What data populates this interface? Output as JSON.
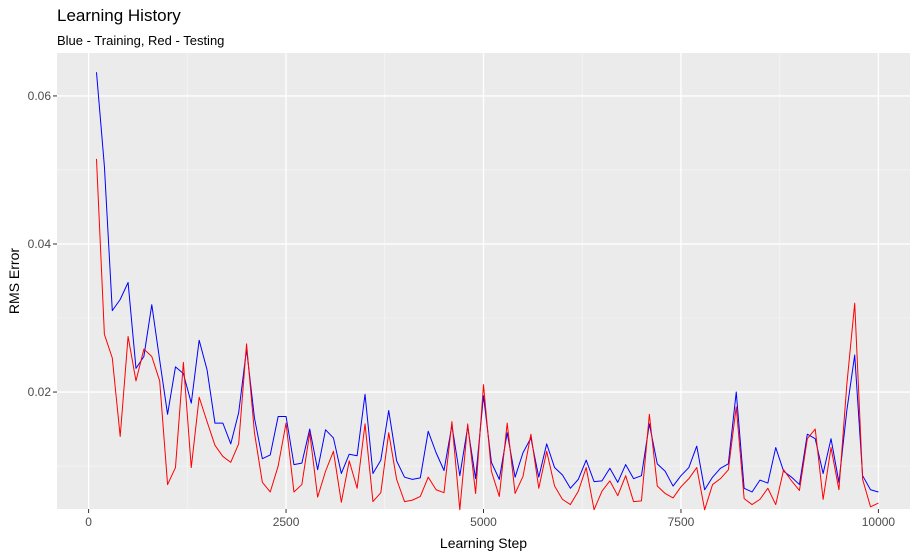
{
  "chart_data": {
    "type": "line",
    "title": "Learning History",
    "subtitle": "Blue - Training, Red - Testing",
    "xlabel": "Learning Step",
    "ylabel": "RMS Error",
    "xlim": [
      -400,
      10400
    ],
    "ylim": [
      0.0042,
      0.0658
    ],
    "x_ticks": [
      0,
      2500,
      5000,
      7500,
      10000
    ],
    "x_tick_labels": [
      "0",
      "2500",
      "5000",
      "7500",
      "10000"
    ],
    "y_ticks": [
      0.02,
      0.04,
      0.06
    ],
    "y_tick_labels": [
      "0.02",
      "0.04",
      "0.06"
    ],
    "grid": true,
    "legend": "none",
    "x": [
      100,
      200,
      300,
      400,
      500,
      600,
      700,
      800,
      900,
      1000,
      1100,
      1200,
      1300,
      1400,
      1500,
      1600,
      1700,
      1800,
      1900,
      2000,
      2100,
      2200,
      2300,
      2400,
      2500,
      2600,
      2700,
      2800,
      2900,
      3000,
      3100,
      3200,
      3300,
      3400,
      3500,
      3600,
      3700,
      3800,
      3900,
      4000,
      4100,
      4200,
      4300,
      4400,
      4500,
      4600,
      4700,
      4800,
      4900,
      5000,
      5100,
      5200,
      5300,
      5400,
      5500,
      5600,
      5700,
      5800,
      5900,
      6000,
      6100,
      6200,
      6300,
      6400,
      6500,
      6600,
      6700,
      6800,
      6900,
      7000,
      7100,
      7200,
      7300,
      7400,
      7500,
      7600,
      7700,
      7800,
      7900,
      8000,
      8100,
      8200,
      8300,
      8400,
      8500,
      8600,
      8700,
      8800,
      8900,
      9000,
      9100,
      9200,
      9300,
      9400,
      9500,
      9600,
      9700,
      9800,
      9900,
      10000
    ],
    "series": [
      {
        "color": "#0000ff",
        "values": [
          0.0632,
          0.0505,
          0.031,
          0.0325,
          0.0348,
          0.0232,
          0.0248,
          0.0318,
          0.0243,
          0.017,
          0.0234,
          0.0225,
          0.0185,
          0.027,
          0.023,
          0.0158,
          0.0158,
          0.013,
          0.0172,
          0.0258,
          0.0165,
          0.011,
          0.0115,
          0.0167,
          0.0167,
          0.0102,
          0.0104,
          0.015,
          0.0095,
          0.0149,
          0.0138,
          0.009,
          0.0116,
          0.0114,
          0.0197,
          0.009,
          0.0108,
          0.0175,
          0.0107,
          0.0085,
          0.0082,
          0.0084,
          0.0147,
          0.0118,
          0.0094,
          0.0155,
          0.0087,
          0.0153,
          0.0083,
          0.0195,
          0.0105,
          0.0082,
          0.0145,
          0.0085,
          0.0118,
          0.0138,
          0.0085,
          0.013,
          0.0098,
          0.0088,
          0.007,
          0.0082,
          0.0108,
          0.0079,
          0.008,
          0.0097,
          0.0078,
          0.0102,
          0.0083,
          0.0087,
          0.0157,
          0.0103,
          0.0093,
          0.0073,
          0.0087,
          0.0098,
          0.0127,
          0.0068,
          0.0085,
          0.0097,
          0.0103,
          0.02,
          0.007,
          0.0065,
          0.0081,
          0.0077,
          0.0125,
          0.0093,
          0.0085,
          0.0075,
          0.0143,
          0.0137,
          0.009,
          0.0137,
          0.0078,
          0.0175,
          0.025,
          0.0087,
          0.0068,
          0.0065
        ]
      },
      {
        "color": "#ff0000",
        "values": [
          0.0515,
          0.0278,
          0.0246,
          0.014,
          0.0275,
          0.0215,
          0.0258,
          0.0248,
          0.0215,
          0.0075,
          0.0098,
          0.024,
          0.0098,
          0.0193,
          0.016,
          0.0128,
          0.0113,
          0.0105,
          0.013,
          0.0265,
          0.0145,
          0.0078,
          0.0065,
          0.01,
          0.0158,
          0.0065,
          0.0075,
          0.0145,
          0.0058,
          0.0093,
          0.012,
          0.0051,
          0.0107,
          0.007,
          0.0157,
          0.0052,
          0.0064,
          0.0145,
          0.0082,
          0.0052,
          0.0054,
          0.0059,
          0.0085,
          0.0068,
          0.0064,
          0.016,
          0.0041,
          0.0157,
          0.0063,
          0.021,
          0.0093,
          0.0059,
          0.0158,
          0.0063,
          0.0086,
          0.0143,
          0.007,
          0.012,
          0.0073,
          0.0055,
          0.0048,
          0.0066,
          0.0098,
          0.0041,
          0.0066,
          0.008,
          0.006,
          0.0087,
          0.0052,
          0.0053,
          0.017,
          0.0073,
          0.0063,
          0.0057,
          0.0072,
          0.0083,
          0.0098,
          0.0041,
          0.0075,
          0.0083,
          0.0095,
          0.018,
          0.0056,
          0.0048,
          0.0055,
          0.007,
          0.0048,
          0.0095,
          0.008,
          0.0067,
          0.0137,
          0.015,
          0.0055,
          0.0125,
          0.0068,
          0.021,
          0.032,
          0.0082,
          0.0045,
          0.005
        ]
      }
    ]
  }
}
